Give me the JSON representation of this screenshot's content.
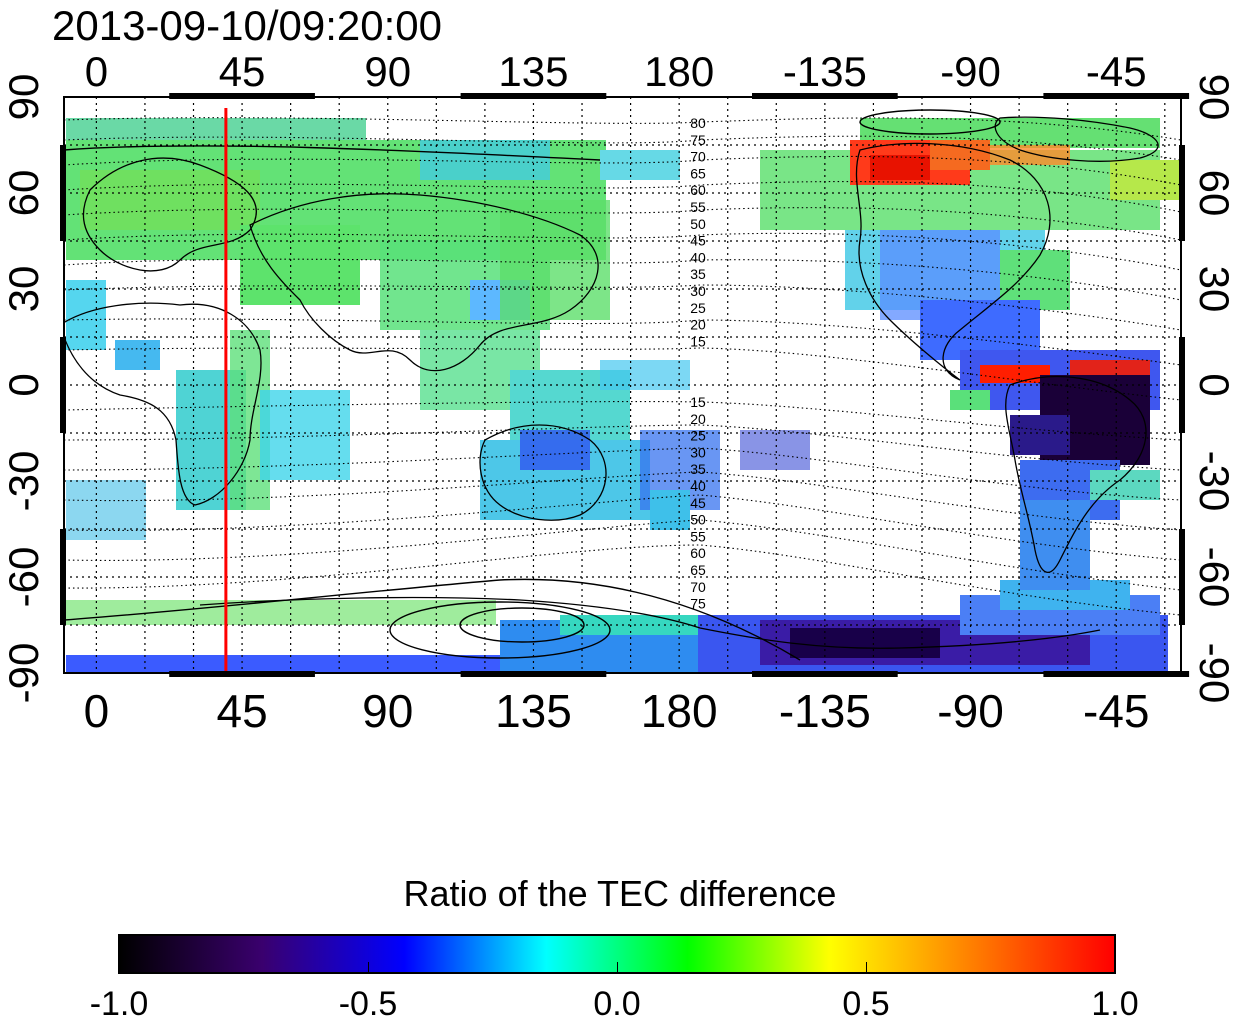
{
  "timestamp": "2013-09-10/09:20:00",
  "map": {
    "lon_tick_labels": [
      "0",
      "45",
      "90",
      "135",
      "180",
      "-135",
      "-90",
      "-45"
    ],
    "lat_tick_labels": [
      "90",
      "60",
      "30",
      "0",
      "-30",
      "-60",
      "-90"
    ],
    "lon_tick_values": [
      0,
      45,
      90,
      135,
      180,
      225,
      270,
      315
    ],
    "lat_tick_values": [
      90,
      60,
      30,
      0,
      -30,
      -60,
      -90
    ],
    "lon_range": [
      -10,
      335
    ],
    "lat_range": [
      -90,
      90
    ],
    "marker_longitude": 40,
    "marker_color": "#ff0000",
    "magnetic_contour_labels_north": [
      "80",
      "75",
      "70",
      "65",
      "60",
      "55",
      "50",
      "45",
      "40",
      "35",
      "30",
      "25",
      "20",
      "15"
    ],
    "magnetic_contour_labels_south": [
      "15",
      "20",
      "25",
      "30",
      "35",
      "40",
      "45",
      "50",
      "55",
      "60",
      "65",
      "70",
      "75"
    ],
    "grid": true
  },
  "colorbar": {
    "title": "Ratio of the TEC difference",
    "min": -1.0,
    "max": 1.0,
    "tick_labels": [
      "-1.0",
      "-0.5",
      "0.0",
      "0.5",
      "1.0"
    ],
    "tick_values": [
      -1.0,
      -0.5,
      0.0,
      0.5,
      1.0
    ],
    "colormap": [
      "#000000",
      "#3a006e",
      "#0000ff",
      "#00ffff",
      "#00ff00",
      "#ffff00",
      "#ff7f00",
      "#ff0000"
    ]
  },
  "colors": {
    "land_green": "#4fe05a",
    "ocean_cyan": "#33ddee",
    "blue": "#2250ff",
    "violet": "#4a10a8",
    "red": "#ff1a00",
    "dark": "#10001e"
  }
}
